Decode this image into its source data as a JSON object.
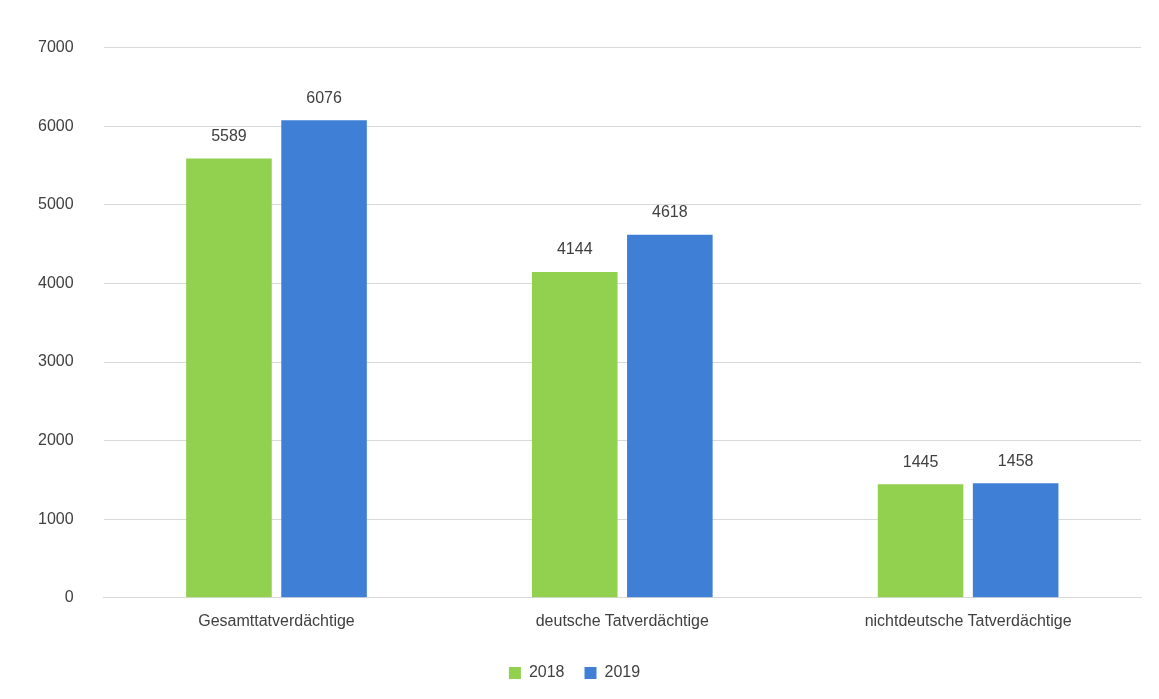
{
  "chart_data": {
    "type": "bar",
    "categories": [
      "Gesamttatverdächtige",
      "deutsche Tatverdächtige",
      "nichtdeutsche Tatverdächtige"
    ],
    "series": [
      {
        "name": "2018",
        "color": "#92d050",
        "values": [
          5589,
          4144,
          1445
        ]
      },
      {
        "name": "2019",
        "color": "#3f80d6",
        "values": [
          6076,
          4618,
          1458
        ]
      }
    ],
    "ylim": [
      0,
      7000
    ],
    "yticks": [
      0,
      1000,
      2000,
      3000,
      4000,
      5000,
      6000,
      7000
    ],
    "grid": "y",
    "legend": "bottom",
    "data_labels": true
  }
}
